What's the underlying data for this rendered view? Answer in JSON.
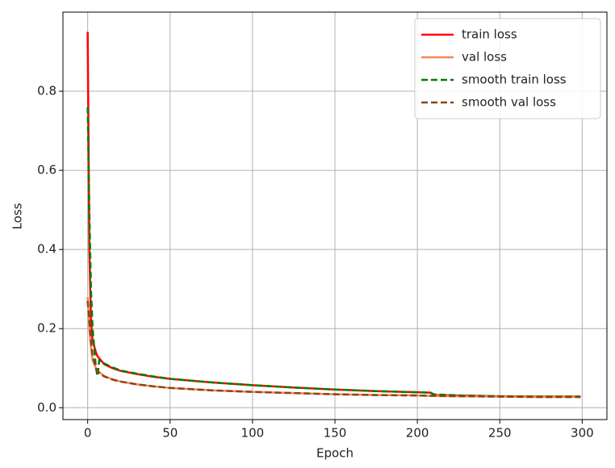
{
  "chart_data": {
    "type": "line",
    "x_label": "Epoch",
    "y_label": "Loss",
    "x": [
      0,
      1,
      2,
      3,
      5,
      6,
      7,
      10,
      15,
      20,
      30,
      40,
      50,
      75,
      100,
      125,
      150,
      175,
      200,
      208,
      210,
      225,
      250,
      275,
      299
    ],
    "series": [
      {
        "name": "train loss",
        "color": "#ff0000",
        "linestyle": "-",
        "values": [
          0.95,
          0.4,
          0.22,
          0.17,
          0.14,
          0.13,
          0.125,
          0.11,
          0.1,
          0.093,
          0.085,
          0.078,
          0.073,
          0.064,
          0.057,
          0.051,
          0.046,
          0.042,
          0.039,
          0.038,
          0.032,
          0.031,
          0.029,
          0.028,
          0.028
        ]
      },
      {
        "name": "val loss",
        "color": "#f4865a",
        "linestyle": "-",
        "values": [
          0.28,
          0.2,
          0.15,
          0.12,
          0.1,
          0.095,
          0.09,
          0.08,
          0.072,
          0.066,
          0.059,
          0.054,
          0.05,
          0.044,
          0.04,
          0.037,
          0.034,
          0.032,
          0.031,
          0.03,
          0.03,
          0.029,
          0.028,
          0.027,
          0.027
        ]
      },
      {
        "name": "smooth train loss",
        "color": "#008000",
        "linestyle": "--",
        "values": [
          0.76,
          0.5,
          0.3,
          0.2,
          0.1,
          0.08,
          0.12,
          0.112,
          0.102,
          0.094,
          0.086,
          0.079,
          0.073,
          0.064,
          0.057,
          0.051,
          0.046,
          0.042,
          0.039,
          0.038,
          0.034,
          0.031,
          0.029,
          0.028,
          0.028
        ]
      },
      {
        "name": "smooth val loss",
        "color": "#8b4513",
        "linestyle": "--",
        "values": [
          0.27,
          0.22,
          0.17,
          0.13,
          0.1,
          0.093,
          0.088,
          0.079,
          0.071,
          0.066,
          0.059,
          0.054,
          0.05,
          0.044,
          0.04,
          0.037,
          0.034,
          0.032,
          0.031,
          0.03,
          0.03,
          0.029,
          0.028,
          0.027,
          0.027
        ]
      }
    ],
    "xlim": [
      -15,
      315
    ],
    "ylim": [
      -0.03,
      1.0
    ],
    "xticks": [
      0,
      50,
      100,
      150,
      200,
      250,
      300
    ],
    "yticks": [
      {
        "value": 0,
        "label": "0.0"
      },
      0.2,
      0.4,
      0.6,
      0.8
    ],
    "grid": true,
    "legend": "upper right"
  }
}
